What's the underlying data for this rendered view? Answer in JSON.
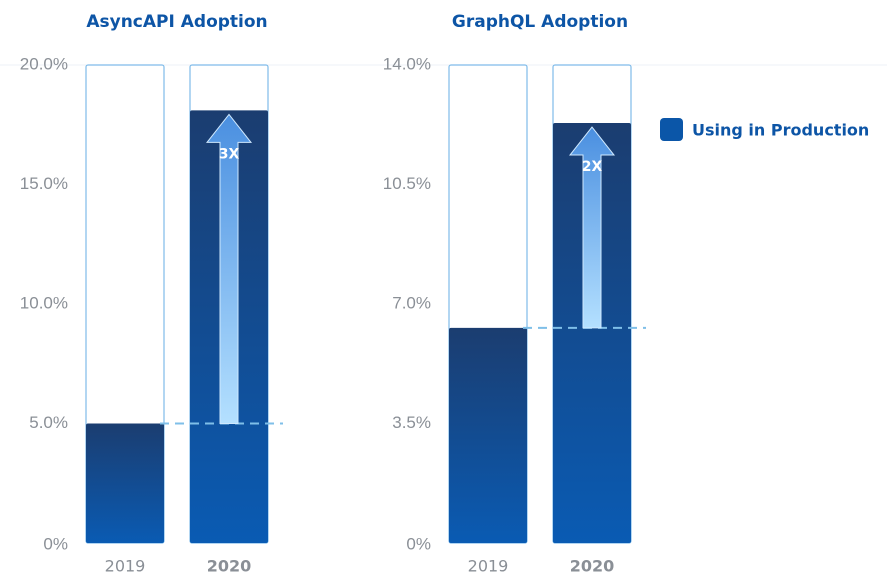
{
  "chart_data": [
    {
      "type": "bar",
      "title": "AsyncAPI Adoption",
      "categories": [
        "2019",
        "2020"
      ],
      "values": [
        5.0,
        18.1
      ],
      "color": "#0b56a8",
      "ylim": [
        0,
        20
      ],
      "yticks": [
        {
          "value": 0,
          "label": "0%"
        },
        {
          "value": 5,
          "label": "5.0%"
        },
        {
          "value": 10,
          "label": "10.0%"
        },
        {
          "value": 15,
          "label": "15.0%"
        },
        {
          "value": 20,
          "label": "20.0%"
        }
      ],
      "annotation": "3X"
    },
    {
      "type": "bar",
      "title": "GraphQL Adoption",
      "categories": [
        "2019",
        "2020"
      ],
      "values": [
        6.3,
        12.3
      ],
      "color": "#0b56a8",
      "ylim": [
        0,
        14
      ],
      "yticks": [
        {
          "value": 0,
          "label": "0%"
        },
        {
          "value": 3.5,
          "label": "3.5%"
        },
        {
          "value": 7,
          "label": "7.0%"
        },
        {
          "value": 10.5,
          "label": "10.5%"
        },
        {
          "value": 14,
          "label": "14.0%"
        }
      ],
      "annotation": "2X"
    }
  ],
  "legend": {
    "label": "Using in Production",
    "color": "#0b56a8"
  }
}
